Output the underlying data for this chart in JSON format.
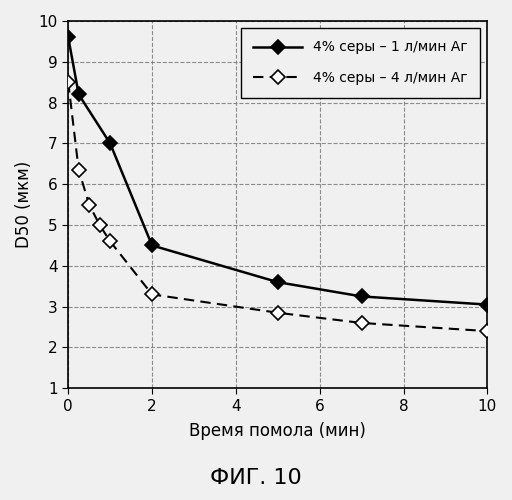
{
  "series1": {
    "label": "4% серы – 1 л/мин Аг",
    "x": [
      0,
      0.25,
      1,
      2,
      5,
      7,
      10
    ],
    "y": [
      9.6,
      8.2,
      7.0,
      4.5,
      3.6,
      3.25,
      3.05
    ],
    "marker": "D",
    "linestyle": "-",
    "color": "black",
    "markerfacecolor": "black",
    "markersize": 7
  },
  "series2": {
    "label": "4% серы – 4 л/мин Аг",
    "x": [
      0,
      0.25,
      0.5,
      0.75,
      1,
      2,
      5,
      7,
      10
    ],
    "y": [
      8.5,
      6.35,
      5.5,
      5.0,
      4.6,
      3.3,
      2.85,
      2.6,
      2.4
    ],
    "marker": "D",
    "linestyle": "--",
    "color": "black",
    "markerfacecolor": "white",
    "markersize": 7
  },
  "xlabel": "Время помола (мин)",
  "ylabel": "D50 (мкм)",
  "title": "ФИГ. 10",
  "xlim": [
    0,
    10
  ],
  "ylim": [
    1,
    10
  ],
  "xticks": [
    0,
    2,
    4,
    6,
    8,
    10
  ],
  "yticks": [
    1,
    2,
    3,
    4,
    5,
    6,
    7,
    8,
    9,
    10
  ],
  "figsize": [
    5.12,
    5.0
  ],
  "dpi": 100,
  "bg_color": "#f0f0f0"
}
